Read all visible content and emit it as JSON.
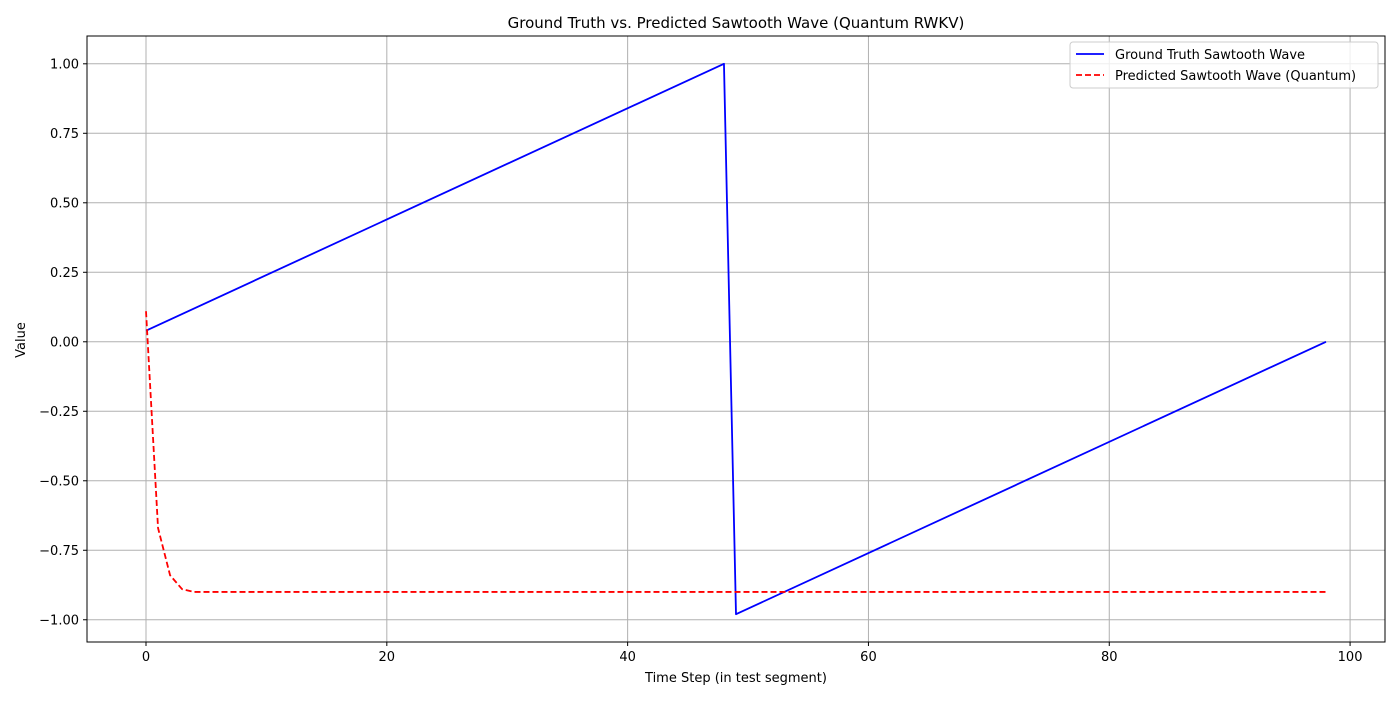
{
  "chart_data": {
    "type": "line",
    "title": "Ground Truth vs. Predicted Sawtooth Wave (Quantum RWKV)",
    "xlabel": "Time Step (in test segment)",
    "ylabel": "Value",
    "xlim": [
      -4.9,
      102.9
    ],
    "ylim": [
      -1.08,
      1.1
    ],
    "xticks": [
      0,
      20,
      40,
      60,
      80,
      100
    ],
    "xtick_labels": [
      "0",
      "20",
      "40",
      "60",
      "80",
      "100"
    ],
    "yticks": [
      -1.0,
      -0.75,
      -0.5,
      -0.25,
      0.0,
      0.25,
      0.5,
      0.75,
      1.0
    ],
    "ytick_labels": [
      "−1.00",
      "−0.75",
      "−0.50",
      "−0.25",
      "0.00",
      "0.25",
      "0.50",
      "0.75",
      "1.00"
    ],
    "grid": true,
    "legend_position": "top-right",
    "series": [
      {
        "name": "Ground Truth Sawtooth Wave",
        "color": "#0000ff",
        "style": "solid",
        "x": [
          0,
          48,
          49,
          98
        ],
        "y": [
          0.04,
          1.0,
          -0.98,
          0.0
        ]
      },
      {
        "name": "Predicted Sawtooth Wave (Quantum)",
        "color": "#ff0000",
        "style": "dashed",
        "x": [
          0,
          1,
          2,
          3,
          4,
          5,
          6,
          98
        ],
        "y": [
          0.11,
          -0.67,
          -0.84,
          -0.89,
          -0.9,
          -0.9,
          -0.9,
          -0.9
        ]
      }
    ]
  }
}
